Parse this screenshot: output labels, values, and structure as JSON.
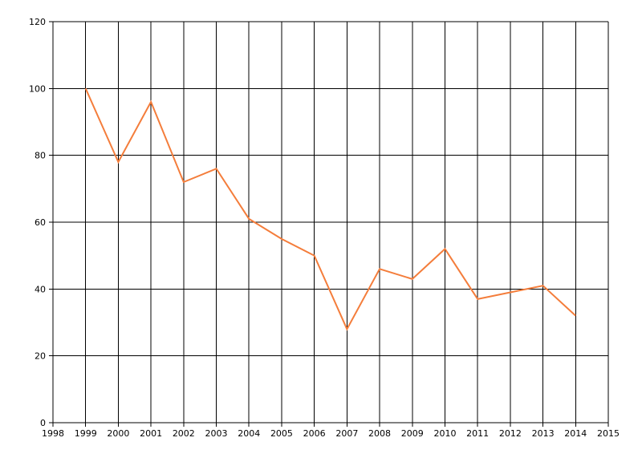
{
  "chart_data": {
    "type": "line",
    "title": "",
    "xlabel": "",
    "ylabel": "",
    "xlim": [
      1998,
      2015
    ],
    "ylim": [
      0,
      120
    ],
    "x_ticks": [
      1998,
      1999,
      2000,
      2001,
      2002,
      2003,
      2004,
      2005,
      2006,
      2007,
      2008,
      2009,
      2010,
      2011,
      2012,
      2013,
      2014,
      2015
    ],
    "y_ticks": [
      0,
      20,
      40,
      60,
      80,
      100,
      120
    ],
    "grid": true,
    "legend": "none",
    "series": [
      {
        "color": "#f47d3b",
        "x": [
          1999,
          2000,
          2001,
          2002,
          2003,
          2004,
          2005,
          2006,
          2007,
          2008,
          2009,
          2010,
          2011,
          2012,
          2013,
          2014
        ],
        "y": [
          100,
          78,
          96,
          72,
          76,
          61,
          55,
          50,
          28,
          46,
          43,
          52,
          37,
          39,
          41,
          32
        ]
      }
    ]
  }
}
